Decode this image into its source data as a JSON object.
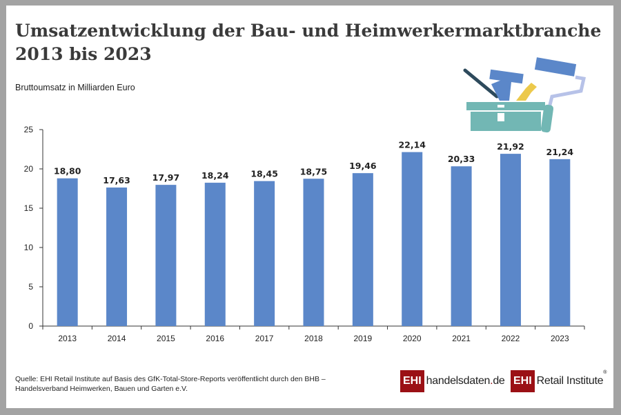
{
  "chart_data": {
    "type": "bar",
    "title": "Umsatzentwicklung der Bau- und Heimwerkermarktbranche 2013 bis 2023",
    "title_lines": [
      "Umsatzentwicklung der Bau- und Heimwerkermarktbranche",
      "2013 bis 2023"
    ],
    "ylabel": "Bruttoumsatz in Milliarden Euro",
    "xlabel": "",
    "categories": [
      "2013",
      "2014",
      "2015",
      "2016",
      "2017",
      "2018",
      "2019",
      "2020",
      "2021",
      "2022",
      "2023"
    ],
    "values": [
      18.8,
      17.63,
      17.97,
      18.24,
      18.45,
      18.75,
      19.46,
      22.14,
      20.33,
      21.92,
      21.24
    ],
    "data_labels": [
      "18,80",
      "17,63",
      "17,97",
      "18,24",
      "18,45",
      "18,75",
      "19,46",
      "22,14",
      "20,33",
      "21,92",
      "21,24"
    ],
    "ylim": [
      0,
      25
    ],
    "yticks": [
      0,
      5,
      10,
      15,
      20,
      25
    ],
    "grid": false,
    "bar_color": "#5b87c9"
  },
  "source": "Quelle: EHI Retail Institute auf Basis des GfK-Total-Store-Reports veröffentlicht durch den BHB – Handelsverband Heimwerken, Bauen und Garten e.V.",
  "logos": {
    "ehi": "EHI",
    "handelsdaten_a": "handelsdaten",
    "handelsdaten_dot": ".",
    "handelsdaten_b": "de",
    "retail": "Retail Institute",
    "reg": "®"
  }
}
